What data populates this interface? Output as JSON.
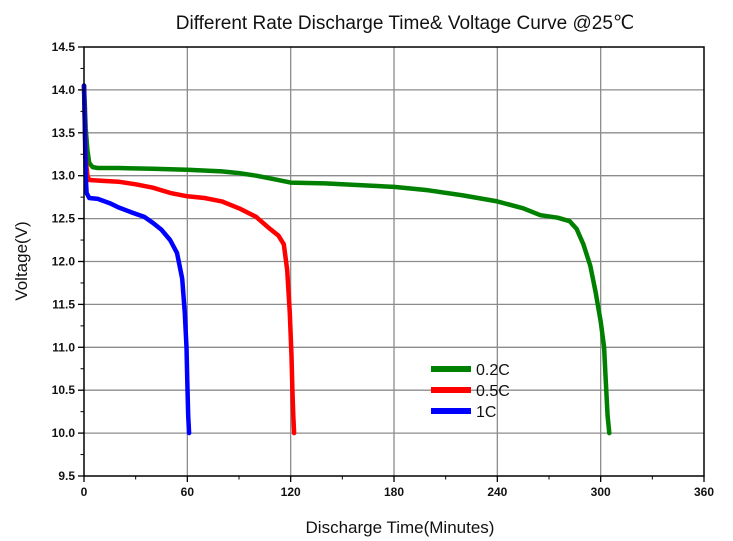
{
  "chart_data": {
    "type": "line",
    "title": "Different Rate Discharge Time& Voltage Curve @25℃",
    "xlabel": "Discharge Time(Minutes)",
    "ylabel": "Voltage(V)",
    "xlim": [
      0,
      360
    ],
    "ylim": [
      9.5,
      14.5
    ],
    "x_ticks": [
      0,
      60,
      120,
      180,
      240,
      300,
      360
    ],
    "y_ticks": [
      9.5,
      10.0,
      10.5,
      11.0,
      11.5,
      12.0,
      12.5,
      13.0,
      13.5,
      14.0,
      14.5
    ],
    "grid": true,
    "legend_position": "center-right",
    "series": [
      {
        "name": "0.2C",
        "color": "#008000",
        "points": [
          [
            0,
            14.05
          ],
          [
            0.5,
            13.8
          ],
          [
            1,
            13.55
          ],
          [
            2,
            13.3
          ],
          [
            3,
            13.15
          ],
          [
            5,
            13.1
          ],
          [
            8,
            13.09
          ],
          [
            20,
            13.09
          ],
          [
            40,
            13.08
          ],
          [
            60,
            13.07
          ],
          [
            80,
            13.05
          ],
          [
            90,
            13.03
          ],
          [
            100,
            13.0
          ],
          [
            110,
            12.96
          ],
          [
            120,
            12.92
          ],
          [
            140,
            12.91
          ],
          [
            160,
            12.89
          ],
          [
            180,
            12.87
          ],
          [
            200,
            12.83
          ],
          [
            220,
            12.77
          ],
          [
            240,
            12.7
          ],
          [
            255,
            12.62
          ],
          [
            265,
            12.54
          ],
          [
            275,
            12.51
          ],
          [
            282,
            12.47
          ],
          [
            286,
            12.38
          ],
          [
            290,
            12.2
          ],
          [
            294,
            11.95
          ],
          [
            297,
            11.65
          ],
          [
            300,
            11.3
          ],
          [
            302,
            11.0
          ],
          [
            303,
            10.6
          ],
          [
            304,
            10.2
          ],
          [
            305,
            10.0
          ]
        ]
      },
      {
        "name": "0.5C",
        "color": "#ff0000",
        "points": [
          [
            0,
            14.05
          ],
          [
            0.5,
            13.6
          ],
          [
            1,
            13.2
          ],
          [
            2,
            13.0
          ],
          [
            3,
            12.95
          ],
          [
            10,
            12.94
          ],
          [
            20,
            12.93
          ],
          [
            30,
            12.9
          ],
          [
            40,
            12.86
          ],
          [
            50,
            12.8
          ],
          [
            60,
            12.76
          ],
          [
            70,
            12.74
          ],
          [
            80,
            12.7
          ],
          [
            90,
            12.62
          ],
          [
            100,
            12.52
          ],
          [
            108,
            12.38
          ],
          [
            113,
            12.3
          ],
          [
            116,
            12.2
          ],
          [
            118,
            11.9
          ],
          [
            119.5,
            11.4
          ],
          [
            120.5,
            10.9
          ],
          [
            121,
            10.5
          ],
          [
            121.5,
            10.2
          ],
          [
            122,
            10.0
          ]
        ]
      },
      {
        "name": "1C",
        "color": "#0000ff",
        "points": [
          [
            0,
            14.05
          ],
          [
            0.5,
            13.5
          ],
          [
            1,
            13.0
          ],
          [
            1.5,
            12.8
          ],
          [
            3,
            12.74
          ],
          [
            8,
            12.73
          ],
          [
            15,
            12.68
          ],
          [
            20,
            12.63
          ],
          [
            28,
            12.57
          ],
          [
            35,
            12.52
          ],
          [
            40,
            12.45
          ],
          [
            45,
            12.37
          ],
          [
            50,
            12.25
          ],
          [
            54,
            12.1
          ],
          [
            57,
            11.8
          ],
          [
            58.5,
            11.4
          ],
          [
            59.5,
            11.0
          ],
          [
            60,
            10.6
          ],
          [
            60.5,
            10.2
          ],
          [
            61,
            10.0
          ]
        ]
      }
    ]
  }
}
